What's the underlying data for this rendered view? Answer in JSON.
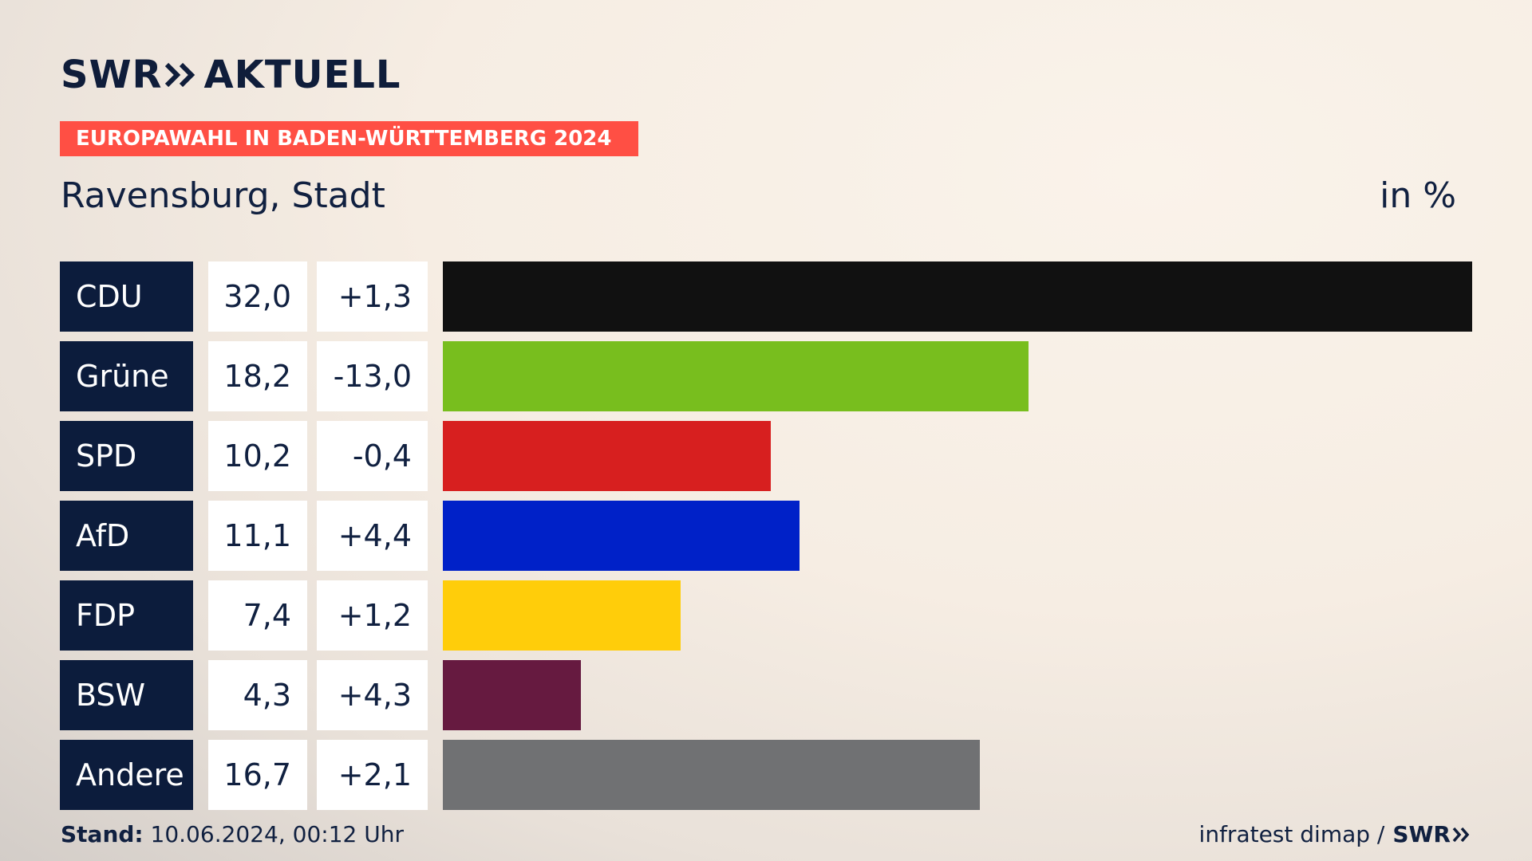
{
  "header": {
    "logo_prefix": "SWR",
    "logo_suffix": "AKTUELL",
    "banner": "EUROPAWAHL IN BADEN-WÜRTTEMBERG 2024",
    "subtitle": "Ravensburg, Stadt",
    "unit": "in %"
  },
  "footer": {
    "stand_label": "Stand:",
    "stand_value": "10.06.2024, 00:12 Uhr",
    "source": "infratest dimap /",
    "source_brand": "SWR"
  },
  "colors": {
    "banner": "#ff4f44",
    "navy": "#0c1c3c"
  },
  "chart_data": {
    "type": "bar",
    "orientation": "horizontal",
    "categories": [
      "CDU",
      "Grüne",
      "SPD",
      "AfD",
      "FDP",
      "BSW",
      "Andere"
    ],
    "values": [
      32.0,
      18.2,
      10.2,
      11.1,
      7.4,
      4.3,
      16.7
    ],
    "value_labels": [
      "32,0",
      "18,2",
      "10,2",
      "11,1",
      "7,4",
      "4,3",
      "16,7"
    ],
    "change_labels": [
      "+1,3",
      "-13,0",
      "-0,4",
      "+4,4",
      "+1,2",
      "+4,3",
      "+2,1"
    ],
    "bar_colors": [
      "#111111",
      "#78be1e",
      "#d71f1f",
      "#0021c8",
      "#ffcd0a",
      "#661a40",
      "#707173"
    ],
    "xlim": [
      0,
      32.0
    ],
    "grid": false,
    "legend": "none"
  }
}
